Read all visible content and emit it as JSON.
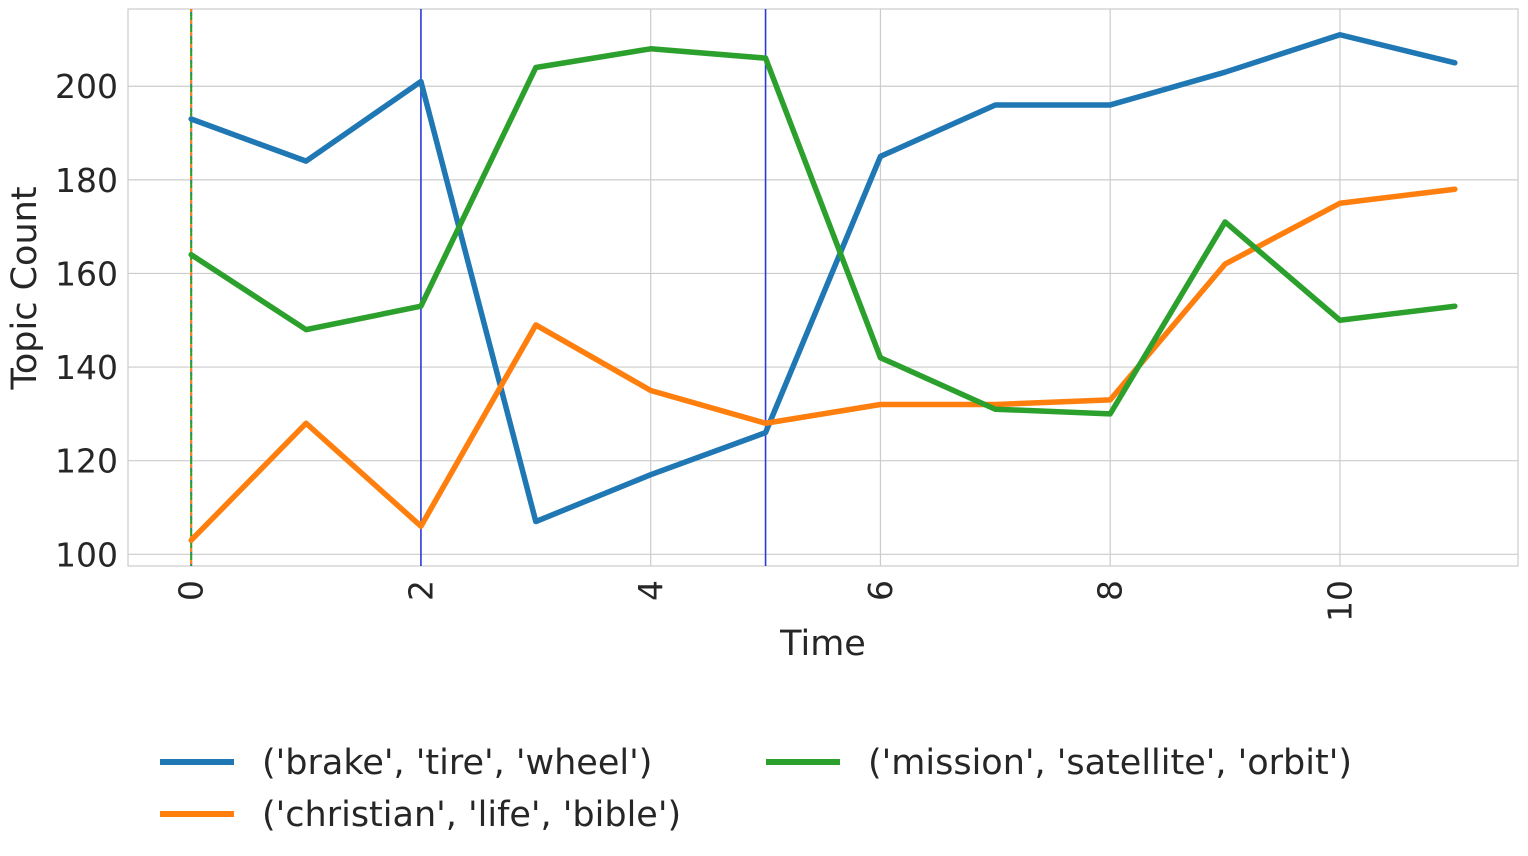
{
  "chart_data": {
    "type": "line",
    "title": "",
    "xlabel": "Time",
    "ylabel": "Topic Count",
    "x": [
      0,
      1,
      2,
      3,
      4,
      5,
      6,
      7,
      8,
      9,
      10,
      11
    ],
    "xticks": [
      0,
      2,
      4,
      6,
      8,
      10
    ],
    "yticks": [
      100,
      120,
      140,
      160,
      180,
      200
    ],
    "xlim": [
      -0.55,
      11.55
    ],
    "ylim": [
      97.5,
      216.5
    ],
    "grid": true,
    "legend_position": "bottom",
    "series": [
      {
        "name": "('brake', 'tire', 'wheel')",
        "color": "#1f77b4",
        "values": [
          193,
          184,
          201,
          107,
          117,
          126,
          185,
          196,
          196,
          203,
          211,
          205
        ]
      },
      {
        "name": "('christian', 'life', 'bible')",
        "color": "#ff7f0e",
        "values": [
          103,
          128,
          106,
          149,
          135,
          128,
          132,
          132,
          133,
          162,
          175,
          178
        ]
      },
      {
        "name": "('mission', 'satellite', 'orbit')",
        "color": "#2ca02c",
        "values": [
          164,
          148,
          153,
          204,
          208,
          206,
          142,
          131,
          130,
          171,
          150,
          153
        ]
      }
    ],
    "vertical_lines": [
      {
        "x": 0,
        "color": "#1f77b4",
        "style": "dashed"
      },
      {
        "x": 0,
        "color": "#ff7f0e",
        "style": "dashed"
      },
      {
        "x": 0,
        "color": "#2ca02c",
        "style": "dashed"
      },
      {
        "x": 2,
        "color": "#2b3bdb",
        "style": "solid"
      },
      {
        "x": 5,
        "color": "#2b3bdb",
        "style": "solid"
      }
    ]
  }
}
